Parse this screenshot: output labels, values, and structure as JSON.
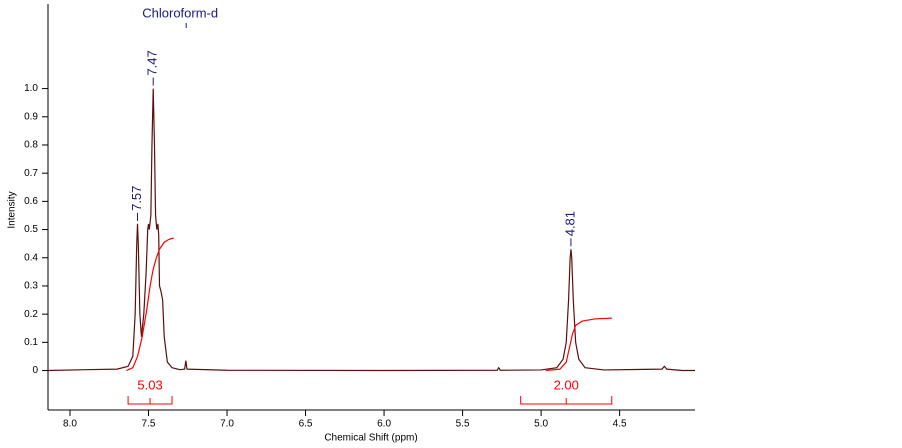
{
  "chart_data": {
    "type": "line",
    "xlabel": "Chemical Shift (ppm)",
    "ylabel": "Intensity",
    "xlim": [
      8.14,
      4.02
    ],
    "ylim": [
      -0.14,
      1.3
    ],
    "xticks": [
      {
        "value": 8,
        "label": "8.0"
      },
      7.5,
      {
        "value": 7,
        "label": "7.0"
      },
      6.5,
      {
        "value": 6,
        "label": "6.0"
      },
      5.5,
      {
        "value": 5,
        "label": "5.0"
      },
      4.5
    ],
    "yticks": [
      0,
      0.1,
      0.2,
      0.3,
      0.4,
      0.5,
      0.6,
      0.7,
      0.8,
      0.9,
      {
        "value": 1,
        "label": "1.0"
      }
    ],
    "series": [
      {
        "color": "#5a1010",
        "x": [
          8.14,
          7.9,
          7.7,
          7.63,
          7.6,
          7.585,
          7.575,
          7.57,
          7.565,
          7.555,
          7.545,
          7.53,
          7.515,
          7.505,
          7.5,
          7.495,
          7.485,
          7.478,
          7.47,
          7.462,
          7.455,
          7.447,
          7.44,
          7.435,
          7.43,
          7.42,
          7.41,
          7.4,
          7.38,
          7.35,
          7.3,
          7.27,
          7.262,
          7.255,
          7.0,
          6.0,
          5.28,
          5.27,
          5.26,
          5.0,
          4.9,
          4.86,
          4.84,
          4.825,
          4.815,
          4.81,
          4.805,
          4.795,
          4.78,
          4.76,
          4.72,
          4.6,
          4.23,
          4.215,
          4.2,
          4.1,
          4.02
        ],
        "values": [
          0,
          0.003,
          0.005,
          0.015,
          0.05,
          0.2,
          0.45,
          0.52,
          0.45,
          0.2,
          0.12,
          0.2,
          0.35,
          0.5,
          0.52,
          0.5,
          0.55,
          0.8,
          1.0,
          0.8,
          0.55,
          0.5,
          0.52,
          0.48,
          0.3,
          0.28,
          0.25,
          0.12,
          0.03,
          0.01,
          0.003,
          0.005,
          0.035,
          0.005,
          0.001,
          0,
          0.001,
          0.01,
          0.001,
          0.002,
          0.01,
          0.04,
          0.1,
          0.25,
          0.4,
          0.43,
          0.4,
          0.25,
          0.1,
          0.04,
          0.01,
          0.002,
          0.005,
          0.015,
          0.005,
          0,
          0
        ]
      },
      {
        "color": "#ff0000",
        "x": [
          7.64,
          7.6,
          7.57,
          7.54,
          7.51,
          7.49,
          7.47,
          7.45,
          7.43,
          7.4,
          7.37,
          7.34
        ],
        "values": [
          0,
          0.01,
          0.05,
          0.12,
          0.22,
          0.3,
          0.36,
          0.4,
          0.43,
          0.455,
          0.465,
          0.47
        ]
      },
      {
        "color": "#ff0000",
        "x": [
          4.97,
          4.88,
          4.84,
          4.82,
          4.8,
          4.78,
          4.74,
          4.66,
          4.55
        ],
        "values": [
          0,
          0.005,
          0.03,
          0.08,
          0.13,
          0.16,
          0.175,
          0.183,
          0.186
        ]
      }
    ],
    "peaks": [
      {
        "x": 7.57
      },
      {
        "x": 7.47
      },
      {
        "x": 4.81
      }
    ],
    "annotations": [
      {
        "text": "Chloroform-d",
        "x": 7.26
      }
    ],
    "integrals": {
      "color": "#ff0000",
      "ranges": [
        [
          7.63,
          7.35
        ],
        [
          5.13,
          4.55
        ]
      ],
      "values": [
        5.03,
        2
      ],
      "value_labels": [
        "5.03",
        "2.00"
      ]
    }
  }
}
